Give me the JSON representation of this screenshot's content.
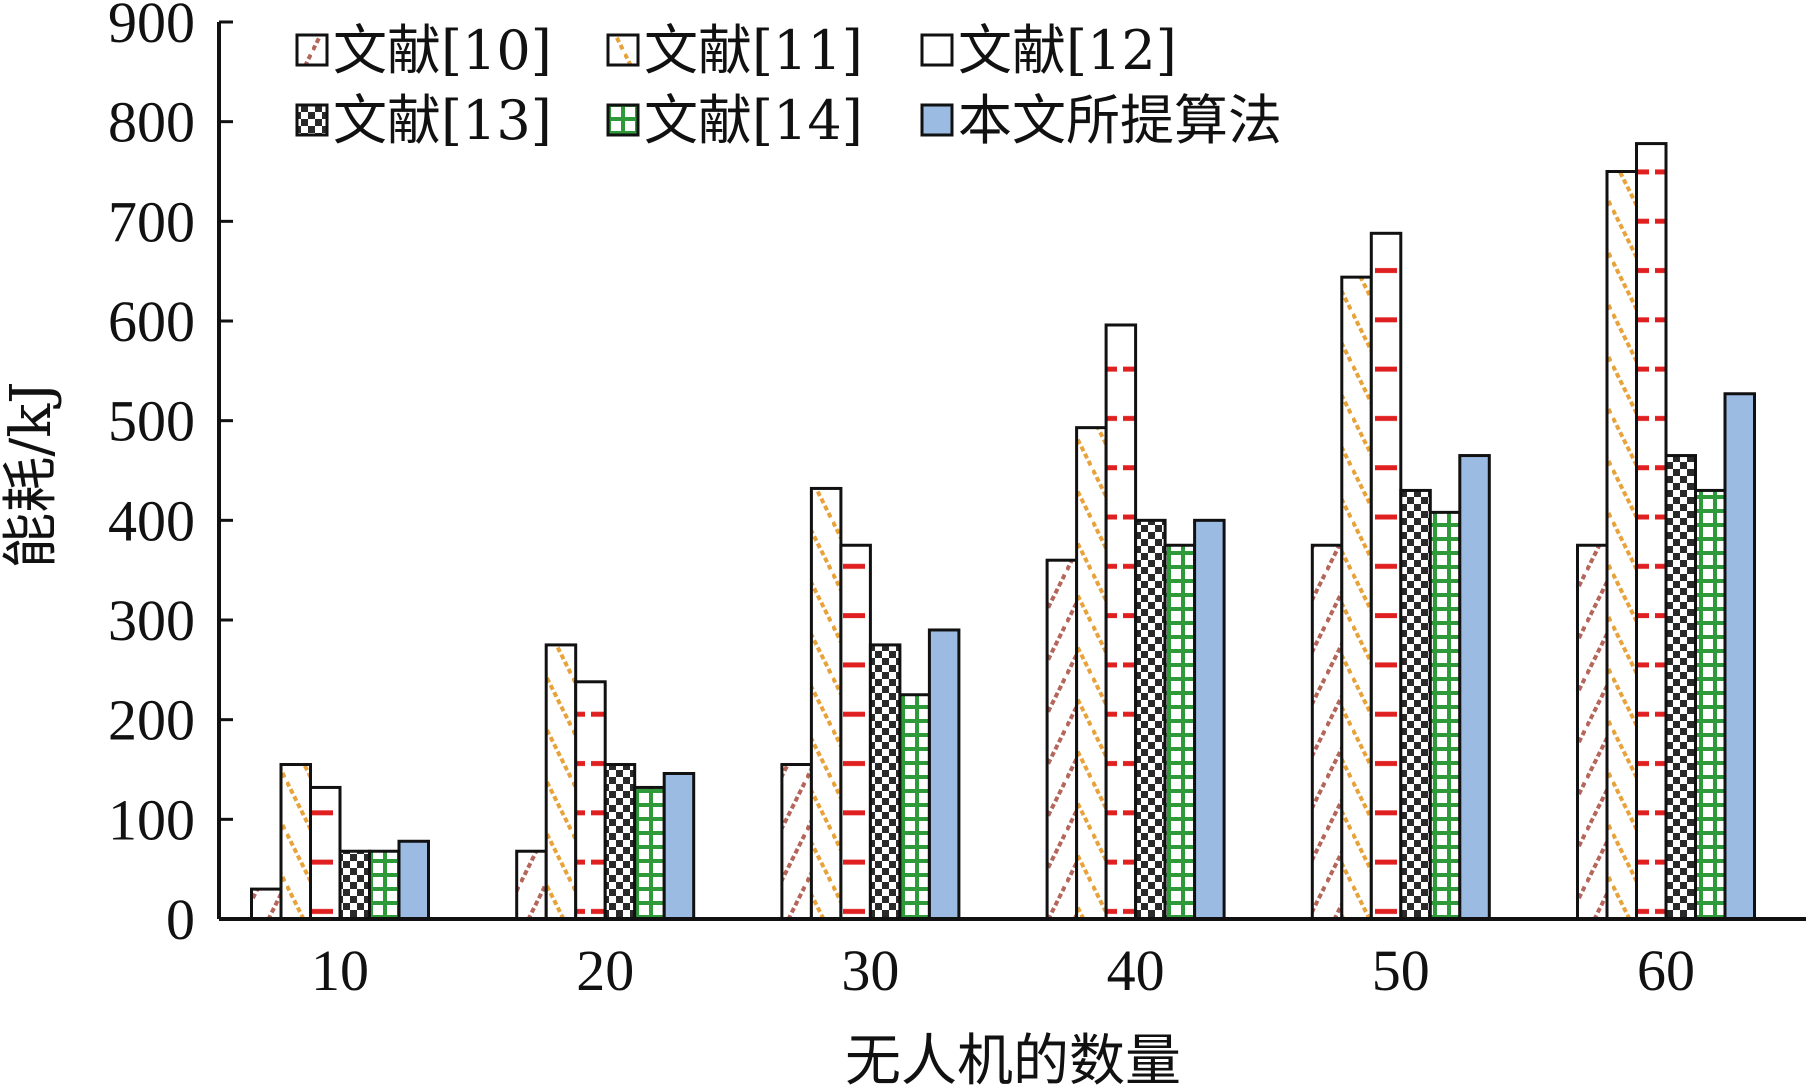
{
  "chart_data": {
    "type": "bar",
    "title": "",
    "xlabel": "无人机的数量",
    "ylabel": "能耗/kJ",
    "ylim": [
      0,
      900
    ],
    "yticks": [
      "0",
      "100",
      "200",
      "300",
      "400",
      "500",
      "600",
      "700",
      "800",
      "900"
    ],
    "categories": [
      "10",
      "20",
      "30",
      "40",
      "50",
      "60"
    ],
    "grid": false,
    "legend_position": "top-left",
    "series": [
      {
        "name": "文献[10]",
        "pattern": "diagonal-right",
        "color": "#b5655a",
        "values": [
          30,
          68,
          155,
          360,
          375,
          375
        ]
      },
      {
        "name": "文献[11]",
        "pattern": "diagonal-left",
        "color": "#e8a23a",
        "values": [
          155,
          275,
          432,
          493,
          644,
          750
        ]
      },
      {
        "name": "文献[12]",
        "pattern": "horizontal-dash",
        "color": "#e02020",
        "values": [
          132,
          238,
          375,
          596,
          688,
          778
        ]
      },
      {
        "name": "文献[13]",
        "pattern": "checker",
        "color": "#222222",
        "values": [
          68,
          155,
          275,
          400,
          430,
          465
        ]
      },
      {
        "name": "文献[14]",
        "pattern": "grid",
        "color": "#2f9a3a",
        "values": [
          68,
          132,
          225,
          375,
          408,
          430
        ]
      },
      {
        "name": "本文所提算法",
        "pattern": "solid",
        "color": "#9bbbe2",
        "values": [
          78,
          146,
          290,
          400,
          465,
          527
        ]
      }
    ]
  }
}
